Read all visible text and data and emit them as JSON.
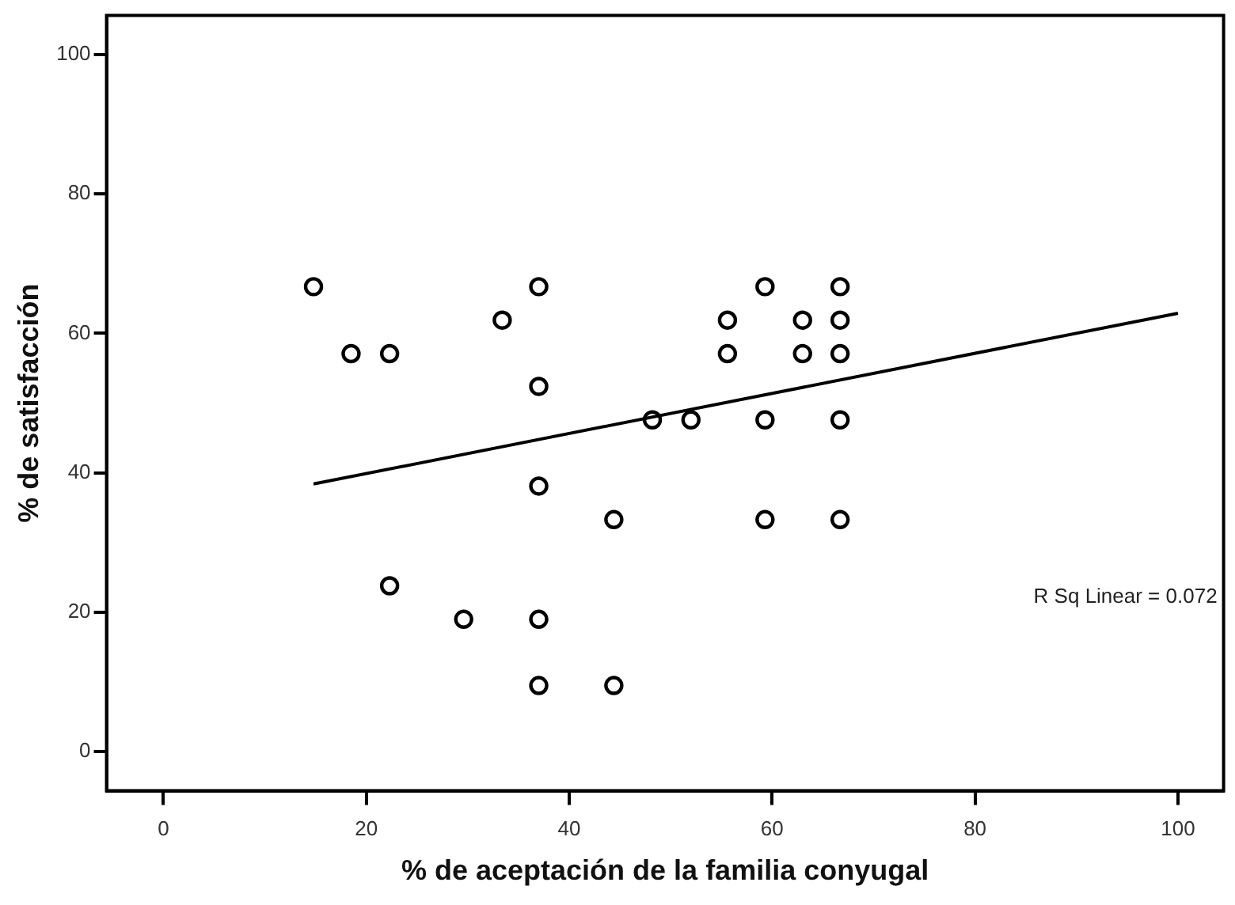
{
  "chart_data": {
    "type": "scatter",
    "xlabel": "% de aceptación de la familia conyugal",
    "ylabel": "% de satisfacción",
    "xlim": [
      -5.6,
      104.5
    ],
    "xticks": [
      0,
      20,
      40,
      60,
      80,
      100
    ],
    "ylim": [
      -5.6,
      105.6
    ],
    "yticks": [
      0,
      20,
      40,
      60,
      80,
      100
    ],
    "grid": false,
    "legend": false,
    "marker": "circle",
    "series": [
      {
        "color": "#000000",
        "x": [
          14.8,
          18.5,
          22.3,
          33.4,
          37.0,
          37.0,
          37.0,
          22.3,
          29.6,
          37.0,
          37.0,
          44.4,
          44.4,
          59.3,
          66.7,
          48.2,
          52.0,
          59.3,
          66.7,
          55.6,
          55.6,
          59.3,
          63.0,
          63.0,
          66.7,
          66.7,
          66.7
        ],
        "values": [
          66.7,
          57.1,
          57.1,
          61.9,
          66.7,
          52.4,
          38.1,
          23.8,
          19.0,
          19.0,
          9.5,
          9.5,
          33.3,
          33.3,
          33.3,
          47.6,
          47.6,
          47.6,
          47.6,
          57.1,
          61.9,
          66.7,
          61.9,
          57.1,
          66.7,
          61.9,
          57.1
        ]
      },
      {
        "type": "line",
        "marker": "none",
        "color": "#000000",
        "x": [
          14.8,
          100
        ],
        "values": [
          38.4,
          62.9
        ]
      }
    ],
    "annotations": [
      "R Sq Linear = 0.072"
    ]
  }
}
